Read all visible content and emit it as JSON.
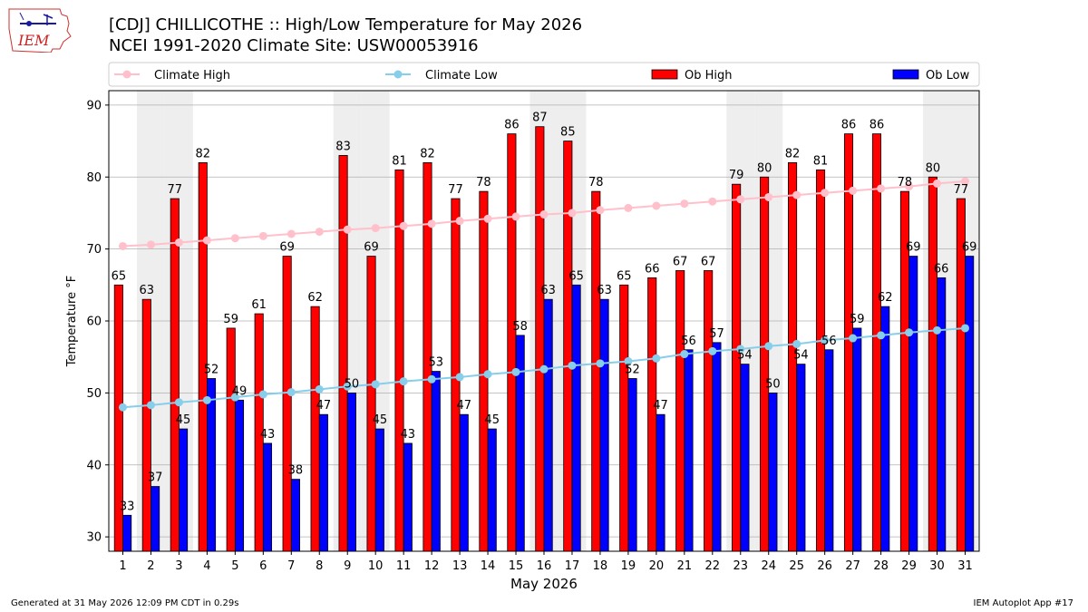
{
  "header": {
    "title_line1": "[CDJ] CHILLICOTHE :: High/Low Temperature for May 2026",
    "title_line2": "NCEI 1991-2020 Climate Site: USW00053916",
    "logo_text": "IEM"
  },
  "footer": {
    "generated": "Generated at 31 May 2026 12:09 PM CDT in 0.29s",
    "app": "IEM Autoplot App #17"
  },
  "colors": {
    "ob_high": "#ff0000",
    "ob_low": "#0000ff",
    "climate_high": "#ffc0cb",
    "climate_low": "#87ceeb",
    "weekend_band": "#eeeeee",
    "grid": "#b0b0b0"
  },
  "chart_data": {
    "type": "bar",
    "xlabel": "May 2026",
    "ylabel": "Temperature °F",
    "ylim": [
      28,
      92
    ],
    "yticks": [
      30,
      40,
      50,
      60,
      70,
      80,
      90
    ],
    "grid": true,
    "legend_placement": "top",
    "categories": [
      "1",
      "2",
      "3",
      "4",
      "5",
      "6",
      "7",
      "8",
      "9",
      "10",
      "11",
      "12",
      "13",
      "14",
      "15",
      "16",
      "17",
      "18",
      "19",
      "20",
      "21",
      "22",
      "23",
      "24",
      "25",
      "26",
      "27",
      "28",
      "29",
      "30",
      "31"
    ],
    "shaded_days": [
      2,
      3,
      9,
      10,
      16,
      17,
      23,
      24,
      30,
      31
    ],
    "series": [
      {
        "name": "Climate High",
        "kind": "line",
        "values": [
          70.4,
          70.6,
          70.9,
          71.2,
          71.5,
          71.8,
          72.1,
          72.4,
          72.7,
          72.9,
          73.2,
          73.5,
          73.9,
          74.2,
          74.5,
          74.8,
          75.0,
          75.4,
          75.7,
          76.0,
          76.3,
          76.6,
          76.9,
          77.2,
          77.5,
          77.8,
          78.1,
          78.4,
          78.7,
          79.1,
          79.4
        ]
      },
      {
        "name": "Climate Low",
        "kind": "line",
        "values": [
          48.0,
          48.3,
          48.7,
          49.0,
          49.4,
          49.8,
          50.1,
          50.5,
          50.9,
          51.2,
          51.6,
          51.9,
          52.2,
          52.6,
          52.9,
          53.3,
          53.8,
          54.1,
          54.4,
          54.8,
          55.4,
          55.8,
          56.1,
          56.5,
          56.8,
          57.3,
          57.6,
          58.0,
          58.4,
          58.7,
          59.0
        ]
      },
      {
        "name": "Ob High",
        "kind": "bar",
        "values": [
          65,
          63,
          77,
          82,
          59,
          61,
          69,
          62,
          83,
          69,
          81,
          82,
          77,
          78,
          86,
          87,
          85,
          78,
          65,
          66,
          67,
          67,
          79,
          80,
          82,
          81,
          86,
          86,
          78,
          80,
          77
        ]
      },
      {
        "name": "Ob Low",
        "kind": "bar",
        "values": [
          33,
          37,
          45,
          52,
          49,
          43,
          38,
          47,
          50,
          45,
          43,
          53,
          47,
          45,
          58,
          63,
          65,
          63,
          52,
          47,
          56,
          57,
          54,
          50,
          54,
          56,
          59,
          62,
          69,
          66,
          69
        ]
      }
    ]
  }
}
